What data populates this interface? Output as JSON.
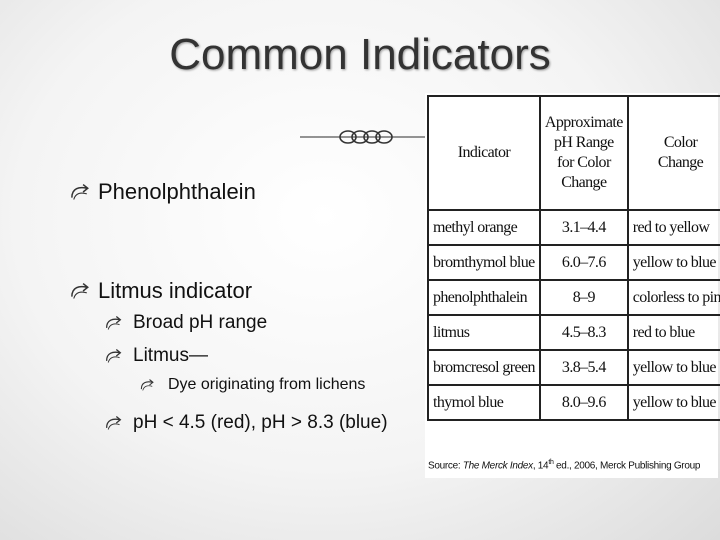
{
  "title": "Common Indicators",
  "bullets": [
    {
      "text": "Phenolphthalein",
      "level": 1
    },
    {
      "text": "Litmus indicator",
      "level": 1
    },
    {
      "text": "Broad pH range",
      "level": 2
    },
    {
      "text": "Litmus—",
      "level": 2
    },
    {
      "text": "Dye originating from lichens",
      "level": 3
    },
    {
      "text": "pH < 4.5 (red), pH > 8.3 (blue)",
      "level": 2
    }
  ],
  "table": {
    "header": [
      "Indicator",
      "Approximate\npH Range\nfor Color\nChange",
      "Color\nChange"
    ],
    "rows": [
      [
        "methyl orange",
        "3.1–4.4",
        "red to yellow"
      ],
      [
        "bromthymol blue",
        "6.0–7.6",
        "yellow to blue"
      ],
      [
        "phenolphthalein",
        "8–9",
        "colorless to pink"
      ],
      [
        "litmus",
        "4.5–8.3",
        "red to blue"
      ],
      [
        "bromcresol green",
        "3.8–5.4",
        "yellow to blue"
      ],
      [
        "thymol blue",
        "8.0–9.6",
        "yellow to blue"
      ]
    ],
    "source": {
      "label": "Source: ",
      "work": "The Merck Index",
      "edition": ", 14",
      "sup": "th",
      "rest": " ed., 2006, Merck Publishing Group"
    }
  }
}
